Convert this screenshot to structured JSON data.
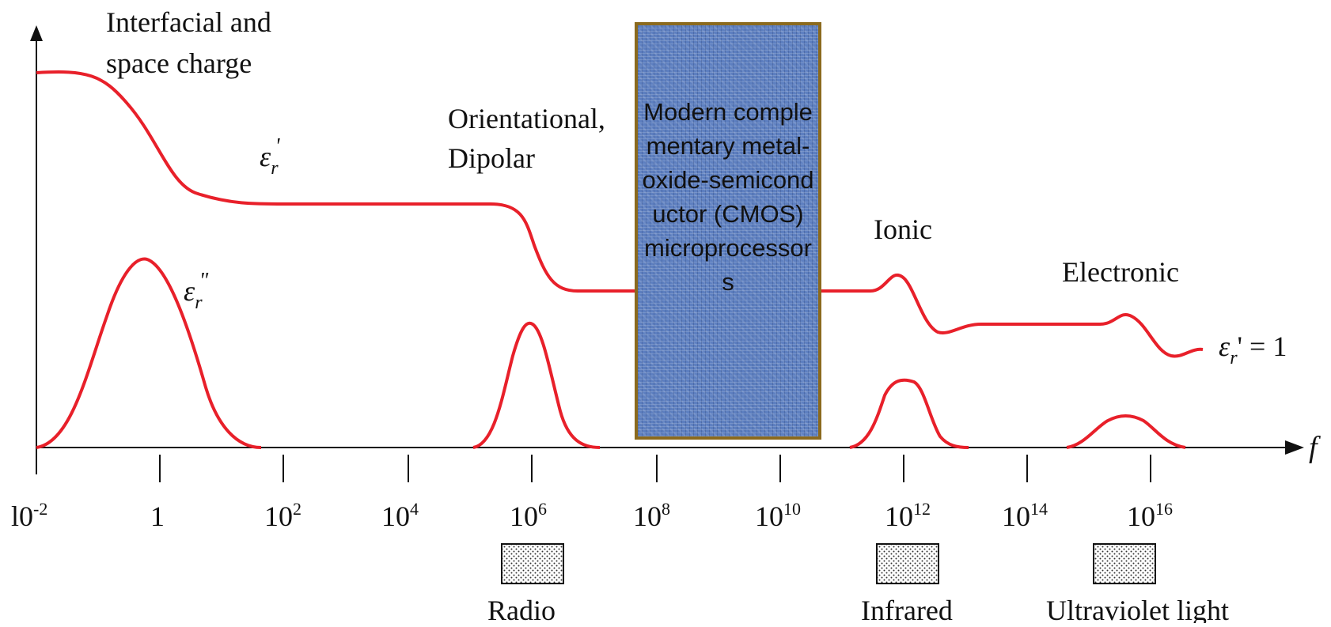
{
  "labels": {
    "interfacial_line1": "Interfacial and",
    "interfacial_line2": "space charge",
    "orientational_line1": "Orientational,",
    "orientational_line2": "Dipolar",
    "ionic": "Ionic",
    "electronic": "Electronic",
    "eps_real": "ε",
    "eps_real_sub": "r",
    "eps_real_prime": "'",
    "eps_imag": "ε",
    "eps_imag_sub": "r",
    "eps_imag_prime": "\"",
    "eps_one": "ε",
    "eps_one_sub": "r",
    "eps_one_rest": "' = 1",
    "f_axis": "f"
  },
  "ticks": [
    {
      "base": "10",
      "exp": "-2",
      "shown": "l0"
    },
    {
      "base": "1",
      "exp": ""
    },
    {
      "base": "10",
      "exp": "2"
    },
    {
      "base": "10",
      "exp": "4"
    },
    {
      "base": "10",
      "exp": "6"
    },
    {
      "base": "10",
      "exp": "8"
    },
    {
      "base": "10",
      "exp": "10"
    },
    {
      "base": "10",
      "exp": "12"
    },
    {
      "base": "10",
      "exp": "14"
    },
    {
      "base": "10",
      "exp": "16"
    }
  ],
  "bands": {
    "radio": "Radio",
    "infrared": "Infrared",
    "ultraviolet": "Ultraviolet light"
  },
  "overlay": {
    "text": "Modern complementary metal-oxide-semiconductor (CMOS) microprocessors",
    "box_color": "#5d7fc0",
    "border_color": "#8b6a1e"
  },
  "colors": {
    "curve": "#e8202a",
    "axis": "#111111"
  }
}
